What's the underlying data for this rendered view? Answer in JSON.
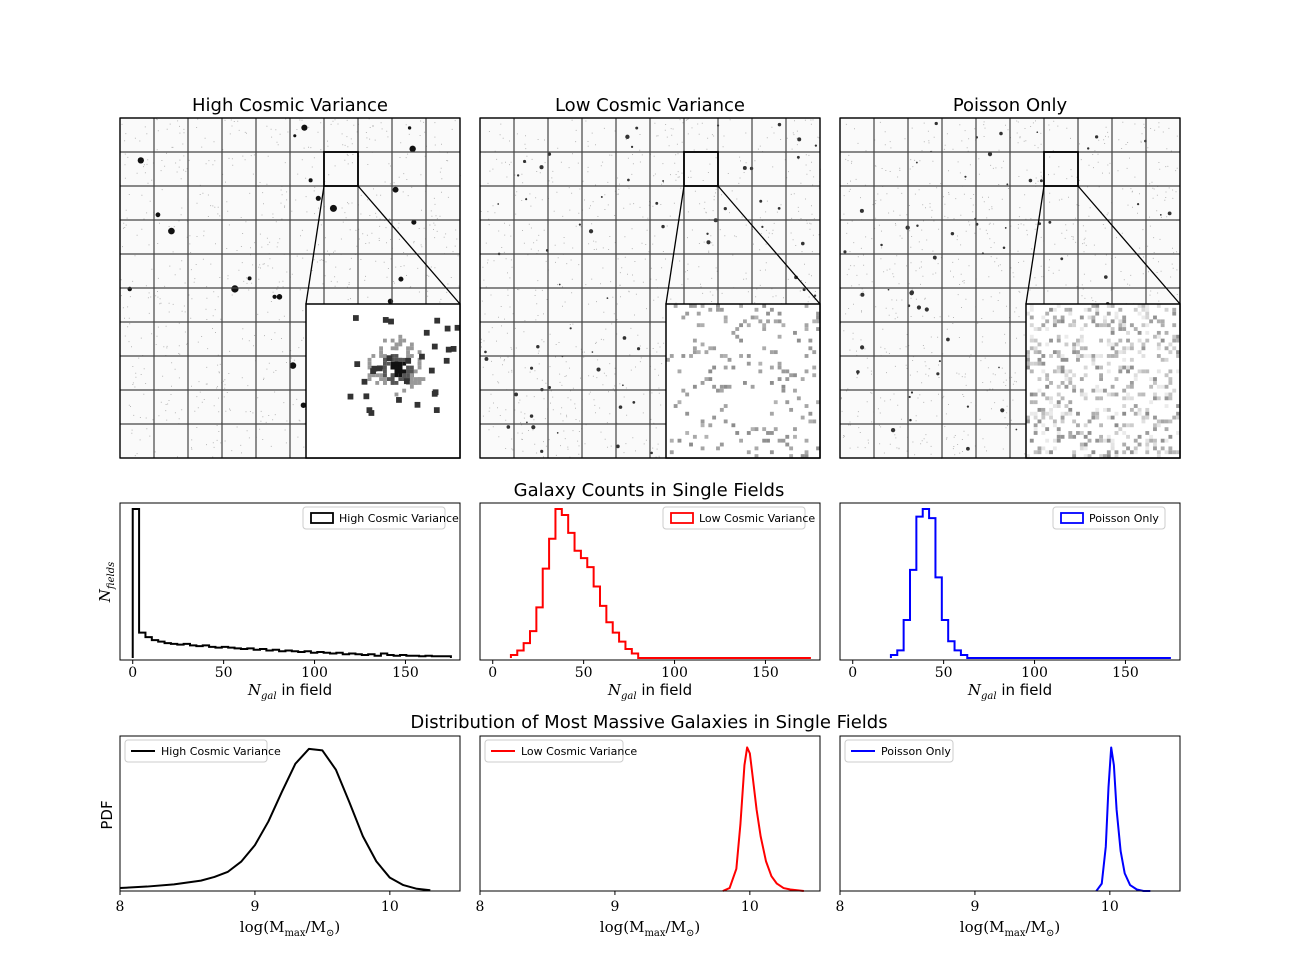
{
  "images": {
    "titles": [
      "High Cosmic Variance",
      "Low Cosmic Variance",
      "Poisson Only"
    ]
  },
  "section_titles": {
    "counts": "Galaxy Counts in Single Fields",
    "massive": "Distribution of Most Massive Galaxies in Single Fields"
  },
  "colors": {
    "high": "#000000",
    "low": "#ff0000",
    "poisson": "#0000ff"
  },
  "chart_data": [
    {
      "type": "step-histogram",
      "title": "",
      "xlabel": "N_gal in field",
      "ylabel": "N_fields",
      "xlim": [
        -7,
        180
      ],
      "xticks": [
        0,
        50,
        100,
        150
      ],
      "series": [
        {
          "name": "High Cosmic Variance",
          "color": "#000000",
          "bin_width": 3.5,
          "x": [
            0,
            3.5,
            7,
            10.5,
            14,
            17.5,
            21,
            24.5,
            28,
            31.5,
            35,
            38.5,
            42,
            45.5,
            49,
            52.5,
            56,
            59.5,
            63,
            66.5,
            70,
            73.5,
            77,
            80.5,
            84,
            87.5,
            91,
            94.5,
            98,
            101.5,
            105,
            108.5,
            112,
            115.5,
            119,
            122.5,
            126,
            129.5,
            133,
            136.5,
            140,
            143.5,
            147,
            150.5,
            154,
            157.5,
            161,
            164.5,
            168,
            171.5
          ],
          "values": [
            100,
            17,
            14,
            12,
            11,
            10,
            9.5,
            9,
            9.5,
            8.5,
            8,
            8.5,
            7.5,
            7,
            7.5,
            7,
            6.5,
            6,
            6.5,
            5.5,
            6,
            5,
            5.5,
            4.5,
            5,
            4.5,
            4,
            4.5,
            3.5,
            4,
            3.5,
            3,
            3.5,
            2.5,
            3,
            2.5,
            2,
            2.5,
            1.5,
            3,
            2,
            1.5,
            2,
            1.5,
            1.5,
            1.2,
            1.5,
            1.2,
            1.2,
            1.2
          ]
        }
      ]
    },
    {
      "type": "step-histogram",
      "title": "",
      "xlabel": "N_gal in field",
      "ylabel": "",
      "xlim": [
        -7,
        180
      ],
      "xticks": [
        0,
        50,
        100,
        150
      ],
      "series": [
        {
          "name": "Low Cosmic Variance",
          "color": "#ff0000",
          "bin_width": 3.5,
          "x": [
            10,
            13.5,
            17,
            20.5,
            24,
            27.5,
            31,
            34.5,
            38,
            41.5,
            45,
            48.5,
            52,
            55.5,
            59,
            62.5,
            66,
            69.5,
            73,
            76.5
          ],
          "values": [
            2,
            5,
            10,
            18,
            34,
            60,
            80,
            100,
            96,
            84,
            72,
            67,
            61,
            48,
            35,
            24,
            17,
            11,
            6,
            3
          ]
        }
      ]
    },
    {
      "type": "step-histogram",
      "title": "",
      "xlabel": "N_gal in field",
      "ylabel": "",
      "xlim": [
        -7,
        180
      ],
      "xticks": [
        0,
        50,
        100,
        150
      ],
      "series": [
        {
          "name": "Poisson Only",
          "color": "#0000ff",
          "bin_width": 3.5,
          "x": [
            21,
            24.5,
            28,
            31.5,
            35,
            38.5,
            42,
            45.5,
            49,
            52.5,
            56,
            59.5
          ],
          "values": [
            2,
            5,
            25,
            58,
            93,
            98,
            92,
            53,
            25,
            11,
            5,
            2
          ]
        }
      ]
    },
    {
      "type": "line",
      "title": "",
      "xlabel": "log(M_max/M_sun)",
      "ylabel": "PDF",
      "xlim": [
        8,
        10.52
      ],
      "xticks": [
        8,
        9,
        10
      ],
      "legend": "upper left",
      "series": [
        {
          "name": "High Cosmic Variance",
          "color": "#000000",
          "x": [
            8.0,
            8.2,
            8.4,
            8.6,
            8.7,
            8.8,
            8.9,
            9.0,
            9.1,
            9.2,
            9.3,
            9.4,
            9.5,
            9.6,
            9.7,
            9.8,
            9.9,
            10.0,
            10.1,
            10.2,
            10.3
          ],
          "y": [
            0.02,
            0.03,
            0.045,
            0.07,
            0.095,
            0.13,
            0.2,
            0.31,
            0.47,
            0.67,
            0.86,
            0.96,
            0.95,
            0.82,
            0.6,
            0.37,
            0.2,
            0.09,
            0.04,
            0.015,
            0.005
          ]
        }
      ]
    },
    {
      "type": "line",
      "title": "",
      "xlabel": "log(M_max/M_sun)",
      "ylabel": "",
      "xlim": [
        8,
        10.52
      ],
      "xticks": [
        8,
        9,
        10
      ],
      "legend": "upper left",
      "series": [
        {
          "name": "Low Cosmic Variance",
          "color": "#ff0000",
          "x": [
            9.8,
            9.85,
            9.9,
            9.93,
            9.96,
            9.98,
            10.0,
            10.02,
            10.05,
            10.08,
            10.12,
            10.16,
            10.2,
            10.25,
            10.3,
            10.4
          ],
          "y": [
            0.0,
            0.02,
            0.15,
            0.45,
            0.85,
            0.97,
            0.93,
            0.78,
            0.55,
            0.37,
            0.2,
            0.1,
            0.05,
            0.02,
            0.01,
            0.0
          ]
        }
      ]
    },
    {
      "type": "line",
      "title": "",
      "xlabel": "log(M_max/M_sun)",
      "ylabel": "",
      "xlim": [
        8,
        10.52
      ],
      "xticks": [
        8,
        9,
        10
      ],
      "legend": "upper left",
      "series": [
        {
          "name": "Poisson Only",
          "color": "#0000ff",
          "x": [
            9.9,
            9.94,
            9.97,
            9.99,
            10.01,
            10.03,
            10.05,
            10.08,
            10.11,
            10.15,
            10.2,
            10.25,
            10.3
          ],
          "y": [
            0.0,
            0.05,
            0.3,
            0.7,
            0.97,
            0.85,
            0.55,
            0.27,
            0.12,
            0.04,
            0.01,
            0.0,
            0.0
          ]
        }
      ]
    }
  ]
}
